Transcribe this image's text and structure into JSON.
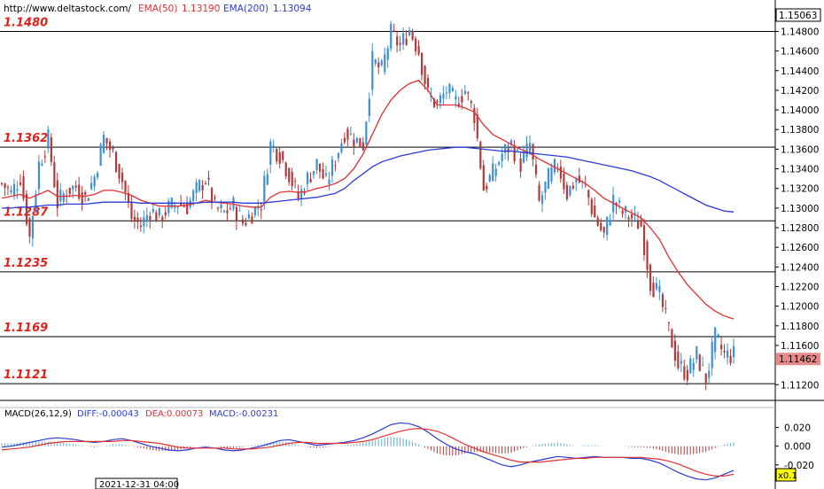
{
  "header": {
    "url": "http://www.deltastock.com/",
    "ema50_label": "EMA(50)",
    "ema50_value": "1.13190",
    "ema200_label": "EMA(200)",
    "ema200_value": "1.13094",
    "top_price_box": "1.15063"
  },
  "macd_header": {
    "name": "MACD(26,12,9)",
    "diff": "DIFF:-0.00043",
    "dea": "DEA:0.00073",
    "macd": "MACD:-0.00231"
  },
  "footer": {
    "date_label": "2021-12-31 04:00",
    "zoom_label": "x0.1"
  },
  "colors": {
    "up_candle": "#3d8fd6",
    "down_candle": "#b23a3a",
    "ema50": "#e53030",
    "ema200": "#2a3bd8",
    "level_label": "#e0201a",
    "current_price_bg": "#e88a8a",
    "diff_line": "#2a3bd8",
    "dea_line": "#e53030",
    "hist_pos": "#5aa9d6",
    "hist_neg": "#b23a3a"
  },
  "chart_data": [
    {
      "type": "candlestick",
      "title": "",
      "ylim": [
        1.1104,
        1.1512
      ],
      "y_ticks": [
        "1.14800",
        "1.14600",
        "1.14400",
        "1.14200",
        "1.14000",
        "1.13800",
        "1.13600",
        "1.13400",
        "1.13200",
        "1.13000",
        "1.12800",
        "1.12600",
        "1.12400",
        "1.12200",
        "1.12000",
        "1.11800",
        "1.11600",
        "1.11200"
      ],
      "current_price": "1.11462",
      "horizontal_levels": [
        {
          "value": 1.148,
          "label": "1.1480"
        },
        {
          "value": 1.1362,
          "label": "1.1362"
        },
        {
          "value": 1.1287,
          "label": "1.1287"
        },
        {
          "value": 1.1235,
          "label": "1.1235"
        },
        {
          "value": 1.1169,
          "label": "1.1169"
        },
        {
          "value": 1.1121,
          "label": "1.1121"
        }
      ],
      "price_path": [
        1.1325,
        1.1315,
        1.1332,
        1.127,
        1.1345,
        1.137,
        1.1305,
        1.1318,
        1.1322,
        1.131,
        1.1332,
        1.1372,
        1.1355,
        1.1328,
        1.129,
        1.1282,
        1.1298,
        1.129,
        1.13,
        1.1305,
        1.1302,
        1.1318,
        1.133,
        1.13,
        1.1295,
        1.1302,
        1.1285,
        1.1295,
        1.1305,
        1.1365,
        1.1355,
        1.1335,
        1.131,
        1.133,
        1.1345,
        1.1325,
        1.135,
        1.1378,
        1.137,
        1.1365,
        1.145,
        1.144,
        1.1478,
        1.1465,
        1.1482,
        1.146,
        1.1415,
        1.1405,
        1.142,
        1.1408,
        1.142,
        1.1395,
        1.132,
        1.1335,
        1.1355,
        1.1365,
        1.1345,
        1.1365,
        1.1305,
        1.133,
        1.1345,
        1.1315,
        1.133,
        1.132,
        1.129,
        1.1272,
        1.1308,
        1.1295,
        1.129,
        1.1282,
        1.1225,
        1.121,
        1.1175,
        1.114,
        1.1132,
        1.115,
        1.1125,
        1.1168,
        1.115,
        1.115
      ],
      "series": [
        {
          "name": "EMA(50)",
          "values": [
            1.131,
            1.1312,
            1.1314,
            1.131,
            1.1314,
            1.1318,
            1.1312,
            1.1312,
            1.1313,
            1.1312,
            1.1314,
            1.1318,
            1.1318,
            1.1316,
            1.1313,
            1.1308,
            1.1305,
            1.1302,
            1.1302,
            1.1302,
            1.1303,
            1.1305,
            1.1308,
            1.1306,
            1.1305,
            1.1304,
            1.1302,
            1.1301,
            1.1301,
            1.1311,
            1.1316,
            1.1317,
            1.1316,
            1.1317,
            1.132,
            1.1322,
            1.1325,
            1.133,
            1.134,
            1.1355,
            1.1375,
            1.1395,
            1.141,
            1.142,
            1.1427,
            1.143,
            1.142,
            1.1405,
            1.1405,
            1.1405,
            1.1402,
            1.1398,
            1.1385,
            1.1375,
            1.137,
            1.1365,
            1.136,
            1.1356,
            1.135,
            1.1345,
            1.134,
            1.1335,
            1.133,
            1.1325,
            1.1318,
            1.131,
            1.1305,
            1.13,
            1.1295,
            1.129,
            1.128,
            1.1268,
            1.125,
            1.1235,
            1.1222,
            1.1212,
            1.1202,
            1.1195,
            1.119,
            1.1187
          ]
        },
        {
          "name": "EMA(200)",
          "values": [
            1.13,
            1.13,
            1.1301,
            1.1301,
            1.1302,
            1.1303,
            1.1303,
            1.1304,
            1.1304,
            1.1304,
            1.1305,
            1.1306,
            1.1306,
            1.1306,
            1.1306,
            1.1305,
            1.1305,
            1.1305,
            1.1305,
            1.1305,
            1.1305,
            1.1305,
            1.1306,
            1.1306,
            1.1306,
            1.1306,
            1.1305,
            1.1305,
            1.1305,
            1.1306,
            1.1307,
            1.1308,
            1.1309,
            1.131,
            1.1311,
            1.1313,
            1.1315,
            1.132,
            1.1328,
            1.1335,
            1.1342,
            1.1347,
            1.135,
            1.1353,
            1.1355,
            1.1357,
            1.1359,
            1.136,
            1.1361,
            1.1362,
            1.1362,
            1.1361,
            1.136,
            1.1359,
            1.1358,
            1.1358,
            1.1357,
            1.1356,
            1.1355,
            1.1354,
            1.1353,
            1.1352,
            1.135,
            1.1348,
            1.1346,
            1.1344,
            1.1342,
            1.134,
            1.1338,
            1.1335,
            1.1332,
            1.1328,
            1.1323,
            1.1318,
            1.1313,
            1.1308,
            1.1303,
            1.13,
            1.1297,
            1.1296
          ]
        }
      ]
    },
    {
      "type": "line",
      "title": "MACD(26,12,9)",
      "ylim": [
        -0.042,
        0.03
      ],
      "y_ticks": [
        "0.020",
        "0.000",
        "-0.020"
      ],
      "series": [
        {
          "name": "DIFF",
          "values": [
            -0.001,
            0.0,
            0.002,
            0.004,
            0.006,
            0.008,
            0.009,
            0.008,
            0.007,
            0.005,
            0.004,
            0.005,
            0.007,
            0.008,
            0.006,
            0.003,
            0.0,
            -0.002,
            -0.004,
            -0.005,
            -0.004,
            -0.002,
            -0.001,
            -0.002,
            -0.004,
            -0.005,
            -0.004,
            -0.002,
            0.0,
            0.003,
            0.006,
            0.007,
            0.005,
            0.003,
            0.001,
            0.002,
            0.003,
            0.004,
            0.006,
            0.009,
            0.013,
            0.018,
            0.023,
            0.025,
            0.024,
            0.021,
            0.015,
            0.008,
            0.002,
            -0.003,
            -0.006,
            -0.008,
            -0.012,
            -0.016,
            -0.02,
            -0.022,
            -0.02,
            -0.017,
            -0.015,
            -0.013,
            -0.011,
            -0.012,
            -0.013,
            -0.012,
            -0.011,
            -0.012,
            -0.012,
            -0.012,
            -0.013,
            -0.013,
            -0.015,
            -0.018,
            -0.023,
            -0.028,
            -0.032,
            -0.035,
            -0.036,
            -0.034,
            -0.03,
            -0.026
          ]
        },
        {
          "name": "DEA",
          "values": [
            -0.004,
            -0.003,
            -0.002,
            -0.001,
            0.001,
            0.003,
            0.004,
            0.005,
            0.005,
            0.005,
            0.005,
            0.005,
            0.005,
            0.006,
            0.006,
            0.005,
            0.004,
            0.003,
            0.001,
            -0.001,
            -0.002,
            -0.002,
            -0.002,
            -0.002,
            -0.002,
            -0.003,
            -0.003,
            -0.003,
            -0.002,
            -0.001,
            0.001,
            0.003,
            0.004,
            0.004,
            0.003,
            0.003,
            0.003,
            0.003,
            0.004,
            0.005,
            0.007,
            0.01,
            0.013,
            0.016,
            0.018,
            0.019,
            0.018,
            0.016,
            0.012,
            0.007,
            0.002,
            -0.002,
            -0.006,
            -0.009,
            -0.012,
            -0.015,
            -0.017,
            -0.017,
            -0.017,
            -0.016,
            -0.015,
            -0.014,
            -0.013,
            -0.013,
            -0.012,
            -0.012,
            -0.012,
            -0.012,
            -0.012,
            -0.012,
            -0.013,
            -0.014,
            -0.016,
            -0.019,
            -0.023,
            -0.027,
            -0.03,
            -0.032,
            -0.032,
            -0.03
          ]
        },
        {
          "name": "MACD",
          "values": [
            0.003,
            0.003,
            0.004,
            0.005,
            0.005,
            0.005,
            0.005,
            0.003,
            0.002,
            0.0,
            -0.001,
            0.0,
            0.002,
            0.002,
            0.0,
            -0.002,
            -0.004,
            -0.005,
            -0.005,
            -0.004,
            -0.002,
            0.0,
            0.001,
            0.0,
            -0.002,
            -0.002,
            -0.001,
            0.001,
            0.002,
            0.004,
            0.005,
            0.004,
            0.001,
            -0.001,
            -0.002,
            -0.001,
            0.0,
            0.001,
            0.002,
            0.004,
            0.006,
            0.008,
            0.01,
            0.009,
            0.006,
            0.002,
            -0.003,
            -0.008,
            -0.01,
            -0.01,
            -0.008,
            -0.006,
            -0.006,
            -0.007,
            -0.008,
            -0.007,
            -0.003,
            0.0,
            0.002,
            0.003,
            0.004,
            0.002,
            0.0,
            0.001,
            0.001,
            0.0,
            0.0,
            0.0,
            -0.001,
            -0.001,
            -0.002,
            -0.004,
            -0.007,
            -0.009,
            -0.009,
            -0.008,
            -0.006,
            -0.002,
            0.002,
            0.004
          ]
        }
      ]
    }
  ]
}
